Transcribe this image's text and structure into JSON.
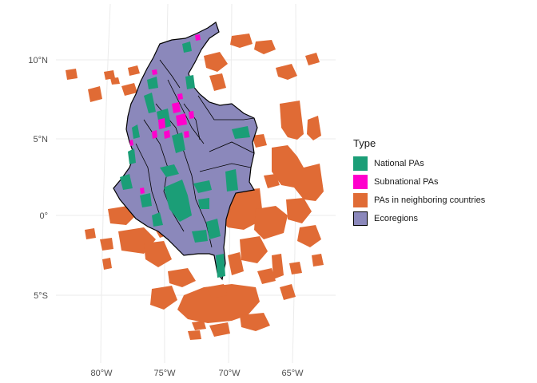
{
  "map": {
    "lat_ticks": [
      "10°N",
      "5°N",
      "0°",
      "5°S"
    ],
    "lon_ticks": [
      "80°W",
      "75°W",
      "70°W",
      "65°W"
    ]
  },
  "legend": {
    "title": "Type",
    "items": [
      {
        "label": "National PAs",
        "color": "#1b9e77"
      },
      {
        "label": "Subnational PAs",
        "color": "#ff00cc"
      },
      {
        "label": "PAs in neighboring countries",
        "color": "#e06b35"
      },
      {
        "label": "Ecoregions",
        "color": "#8b88bb"
      }
    ]
  }
}
